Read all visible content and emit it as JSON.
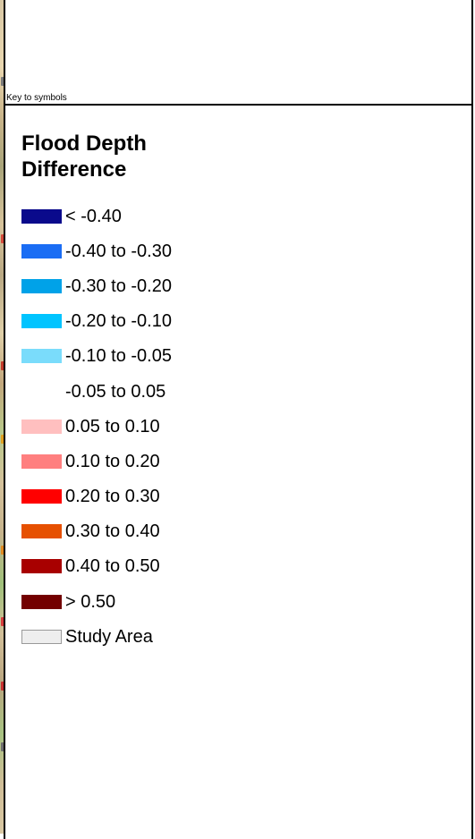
{
  "key_label": "Key to symbols",
  "legend": {
    "title_line1": "Flood Depth",
    "title_line2": "Difference",
    "items": [
      {
        "label": "< -0.40",
        "color": "#0a0a8c",
        "border": "none"
      },
      {
        "label": "-0.40 to -0.30",
        "color": "#1a6df4",
        "border": "none"
      },
      {
        "label": "-0.30 to -0.20",
        "color": "#00a2e8",
        "border": "none"
      },
      {
        "label": "-0.20 to -0.10",
        "color": "#00c4ff",
        "border": "none"
      },
      {
        "label": "-0.10 to -0.05",
        "color": "#7adcfb",
        "border": "none"
      },
      {
        "label": "-0.05 to 0.05",
        "color": "#ffffff",
        "border": "none"
      },
      {
        "label": "0.05 to 0.10",
        "color": "#ffbfbf",
        "border": "none"
      },
      {
        "label": "0.10 to 0.20",
        "color": "#ff7f7f",
        "border": "none"
      },
      {
        "label": "0.20 to 0.30",
        "color": "#ff0000",
        "border": "none"
      },
      {
        "label": "0.30 to 0.40",
        "color": "#e65000",
        "border": "none"
      },
      {
        "label": "0.40 to 0.50",
        "color": "#a80000",
        "border": "none"
      },
      {
        "label": "> 0.50",
        "color": "#730000",
        "border": "none"
      },
      {
        "label": "Study Area",
        "color": "#eeeeee",
        "border": "#9a9a9a"
      }
    ]
  }
}
